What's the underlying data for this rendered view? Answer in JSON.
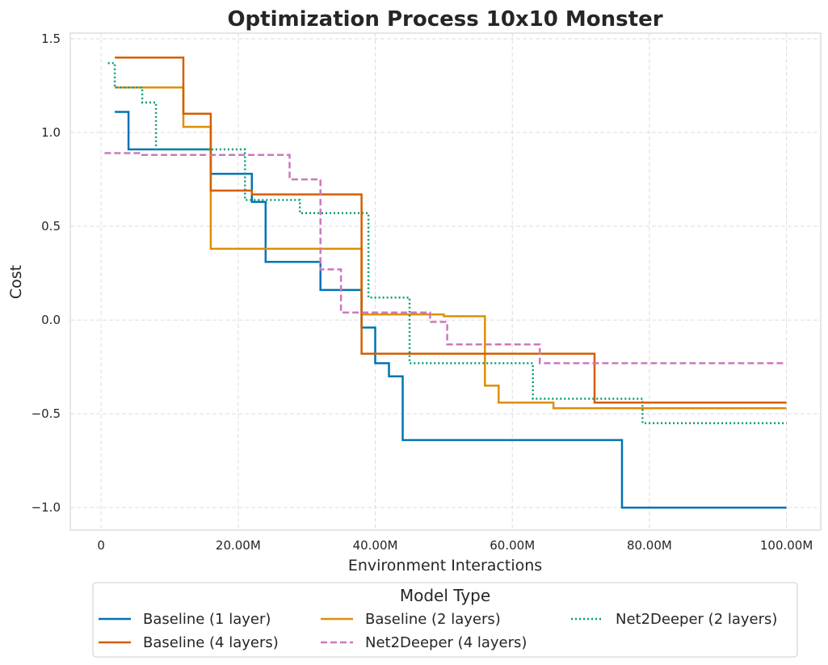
{
  "chart_data": {
    "type": "line",
    "step": true,
    "title": "Optimization Process 10x10 Monster",
    "xlabel": "Environment Interactions",
    "ylabel": "Cost",
    "xlim": [
      -4500000,
      105000000
    ],
    "ylim": [
      -1.12,
      1.53
    ],
    "x_ticks": [
      0,
      20000000,
      40000000,
      60000000,
      80000000,
      100000000
    ],
    "x_tick_labels": [
      "0",
      "20.00M",
      "40.00M",
      "60.00M",
      "80.00M",
      "100.00M"
    ],
    "y_ticks": [
      -1.0,
      -0.5,
      0.0,
      0.5,
      1.0,
      1.5
    ],
    "y_tick_labels": [
      "−1.0",
      "−0.5",
      "0.0",
      "0.5",
      "1.0",
      "1.5"
    ],
    "grid": true,
    "legend": {
      "title": "Model Type",
      "placement": "below",
      "columns": 3
    },
    "series": [
      {
        "name": "Baseline (1 layer)",
        "color": "#0173b2",
        "dash": "solid",
        "x": [
          2000000,
          4000000,
          16000000,
          22000000,
          24000000,
          32000000,
          38000000,
          40000000,
          42000000,
          44000000,
          76000000,
          100000000
        ],
        "y": [
          1.11,
          0.91,
          0.78,
          0.63,
          0.31,
          0.16,
          -0.04,
          -0.23,
          -0.3,
          -0.64,
          -1.0,
          -1.0
        ]
      },
      {
        "name": "Baseline (2 layers)",
        "color": "#de8f05",
        "dash": "solid",
        "x": [
          2000000,
          12000000,
          16000000,
          38000000,
          50000000,
          56000000,
          58000000,
          66000000,
          100000000
        ],
        "y": [
          1.24,
          1.03,
          0.38,
          0.03,
          0.02,
          -0.35,
          -0.44,
          -0.47,
          -0.47
        ]
      },
      {
        "name": "Net2Deeper (2 layers)",
        "color": "#029e73",
        "dash": "dotted",
        "x": [
          1000000,
          2000000,
          6000000,
          8000000,
          21000000,
          29000000,
          39000000,
          45000000,
          63000000,
          79000000,
          100000000
        ],
        "y": [
          1.37,
          1.24,
          1.16,
          0.91,
          0.64,
          0.57,
          0.12,
          -0.23,
          -0.42,
          -0.55,
          -0.55
        ]
      },
      {
        "name": "Baseline (4 layers)",
        "color": "#d55e00",
        "dash": "solid",
        "x": [
          2000000,
          12000000,
          16000000,
          22000000,
          38000000,
          72000000,
          100000000
        ],
        "y": [
          1.4,
          1.1,
          0.69,
          0.67,
          -0.18,
          -0.44,
          -0.44
        ]
      },
      {
        "name": "Net2Deeper (4 layers)",
        "color": "#cc78bc",
        "dash": "dashed",
        "x": [
          500000,
          6000000,
          27500000,
          32000000,
          35000000,
          48000000,
          50500000,
          64000000,
          100000000
        ],
        "y": [
          0.89,
          0.88,
          0.75,
          0.27,
          0.04,
          -0.01,
          -0.13,
          -0.23,
          -0.23
        ]
      }
    ]
  }
}
